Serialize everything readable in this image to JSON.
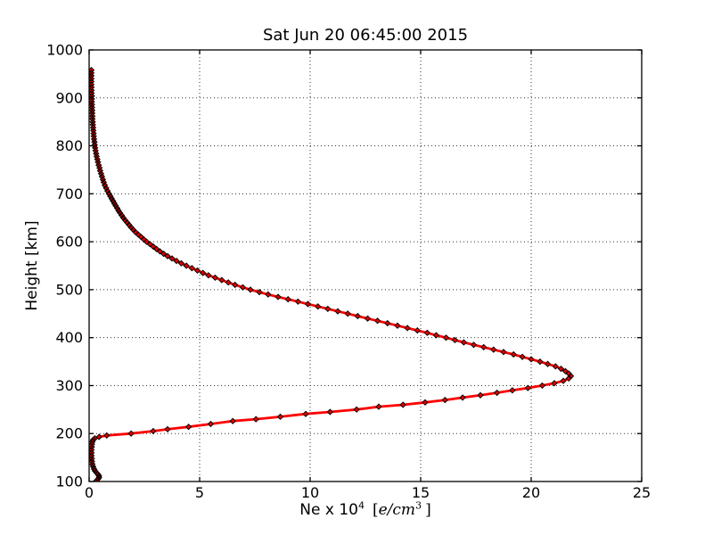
{
  "chart_data": {
    "type": "line",
    "title": "Sat Jun 20 06:45:00 2015",
    "ylabel": "Height [km]",
    "xlabel": {
      "prefix": "Ne x 10",
      "exponent": "4",
      "unit_open": "[",
      "unit_body": "e/cm",
      "unit_exponent": "3",
      "unit_close": "]"
    },
    "xlabel_plain": "Ne x 10^4 [e/cm^3]",
    "xlim": [
      0,
      25
    ],
    "ylim": [
      100,
      1000
    ],
    "xticks": [
      "0",
      "5",
      "10",
      "15",
      "20",
      "25"
    ],
    "yticks": [
      "100",
      "200",
      "300",
      "400",
      "500",
      "600",
      "700",
      "800",
      "900",
      "1000"
    ],
    "grid": {
      "style": "dotted",
      "color": "#333333"
    },
    "axes_color": "#000000",
    "background": "#ffffff",
    "series": [
      {
        "name": "electron-density-profile",
        "line_color": "#ff0000",
        "line_width": 2.8,
        "marker": "diamond",
        "marker_fill": "#dd0000",
        "marker_edge": "#000000",
        "point_format": [
          "height_km",
          "ne_x1e4_e_per_cm3"
        ],
        "peak": {
          "height_km": 320,
          "ne": 21.8
        },
        "points": [
          [
            100,
            0.3
          ],
          [
            103,
            0.36
          ],
          [
            106,
            0.42
          ],
          [
            109,
            0.45
          ],
          [
            112,
            0.44
          ],
          [
            115,
            0.4
          ],
          [
            118,
            0.34
          ],
          [
            122,
            0.27
          ],
          [
            126,
            0.22
          ],
          [
            131,
            0.18
          ],
          [
            136,
            0.15
          ],
          [
            142,
            0.13
          ],
          [
            148,
            0.12
          ],
          [
            154,
            0.11
          ],
          [
            160,
            0.11
          ],
          [
            166,
            0.11
          ],
          [
            172,
            0.12
          ],
          [
            178,
            0.13
          ],
          [
            183,
            0.15
          ],
          [
            187,
            0.18
          ],
          [
            190,
            0.26
          ],
          [
            193,
            0.45
          ],
          [
            196,
            0.8
          ],
          [
            200,
            1.9
          ],
          [
            205,
            2.9
          ],
          [
            209,
            3.55
          ],
          [
            214,
            4.5
          ],
          [
            220,
            5.5
          ],
          [
            226,
            6.5
          ],
          [
            230,
            7.55
          ],
          [
            235,
            8.65
          ],
          [
            241,
            9.8
          ],
          [
            245,
            10.9
          ],
          [
            250,
            12.1
          ],
          [
            256,
            13.1
          ],
          [
            260,
            14.2
          ],
          [
            265,
            15.2
          ],
          [
            270,
            16.1
          ],
          [
            275,
            16.9
          ],
          [
            280,
            17.7
          ],
          [
            285,
            18.45
          ],
          [
            290,
            19.15
          ],
          [
            295,
            19.85
          ],
          [
            300,
            20.5
          ],
          [
            305,
            21.05
          ],
          [
            310,
            21.45
          ],
          [
            315,
            21.7
          ],
          [
            320,
            21.8
          ],
          [
            325,
            21.7
          ],
          [
            330,
            21.55
          ],
          [
            335,
            21.35
          ],
          [
            340,
            21.1
          ],
          [
            345,
            20.75
          ],
          [
            350,
            20.4
          ],
          [
            355,
            20.0
          ],
          [
            360,
            19.6
          ],
          [
            365,
            19.2
          ],
          [
            370,
            18.75
          ],
          [
            375,
            18.3
          ],
          [
            380,
            17.85
          ],
          [
            385,
            17.4
          ],
          [
            390,
            16.95
          ],
          [
            395,
            16.55
          ],
          [
            400,
            16.15
          ],
          [
            405,
            15.7
          ],
          [
            410,
            15.3
          ],
          [
            415,
            14.85
          ],
          [
            420,
            14.4
          ],
          [
            425,
            13.95
          ],
          [
            430,
            13.5
          ],
          [
            435,
            13.05
          ],
          [
            440,
            12.6
          ],
          [
            445,
            12.15
          ],
          [
            450,
            11.7
          ],
          [
            455,
            11.25
          ],
          [
            460,
            10.8
          ],
          [
            465,
            10.35
          ],
          [
            470,
            9.9
          ],
          [
            475,
            9.45
          ],
          [
            480,
            9.0
          ],
          [
            485,
            8.55
          ],
          [
            490,
            8.1
          ],
          [
            495,
            7.7
          ],
          [
            500,
            7.3
          ],
          [
            505,
            6.95
          ],
          [
            510,
            6.6
          ],
          [
            515,
            6.3
          ],
          [
            520,
            6.0
          ],
          [
            525,
            5.7
          ],
          [
            530,
            5.4
          ],
          [
            535,
            5.15
          ],
          [
            540,
            4.9
          ],
          [
            545,
            4.65
          ],
          [
            550,
            4.4
          ],
          [
            555,
            4.17
          ],
          [
            560,
            3.95
          ],
          [
            565,
            3.75
          ],
          [
            570,
            3.55
          ],
          [
            575,
            3.37
          ],
          [
            580,
            3.2
          ],
          [
            585,
            3.05
          ],
          [
            590,
            2.9
          ],
          [
            595,
            2.75
          ],
          [
            600,
            2.6
          ],
          [
            605,
            2.47
          ],
          [
            610,
            2.35
          ],
          [
            615,
            2.22
          ],
          [
            620,
            2.1
          ],
          [
            625,
            2.0
          ],
          [
            630,
            1.9
          ],
          [
            635,
            1.81
          ],
          [
            640,
            1.72
          ],
          [
            645,
            1.63
          ],
          [
            650,
            1.55
          ],
          [
            655,
            1.47
          ],
          [
            660,
            1.4
          ],
          [
            665,
            1.33
          ],
          [
            670,
            1.27
          ],
          [
            675,
            1.2
          ],
          [
            680,
            1.14
          ],
          [
            685,
            1.08
          ],
          [
            690,
            1.02
          ],
          [
            695,
            0.96
          ],
          [
            700,
            0.9
          ],
          [
            706,
            0.83
          ],
          [
            712,
            0.77
          ],
          [
            718,
            0.71
          ],
          [
            724,
            0.66
          ],
          [
            730,
            0.62
          ],
          [
            736,
            0.58
          ],
          [
            742,
            0.54
          ],
          [
            748,
            0.5
          ],
          [
            754,
            0.47
          ],
          [
            760,
            0.43
          ],
          [
            766,
            0.4
          ],
          [
            772,
            0.37
          ],
          [
            778,
            0.34
          ],
          [
            784,
            0.32
          ],
          [
            790,
            0.29
          ],
          [
            796,
            0.27
          ],
          [
            802,
            0.25
          ],
          [
            808,
            0.24
          ],
          [
            814,
            0.22
          ],
          [
            820,
            0.21
          ],
          [
            826,
            0.2
          ],
          [
            832,
            0.19
          ],
          [
            838,
            0.18
          ],
          [
            844,
            0.17
          ],
          [
            850,
            0.16
          ],
          [
            856,
            0.15
          ],
          [
            862,
            0.15
          ],
          [
            868,
            0.14
          ],
          [
            874,
            0.14
          ],
          [
            880,
            0.13
          ],
          [
            886,
            0.13
          ],
          [
            892,
            0.12
          ],
          [
            898,
            0.12
          ],
          [
            904,
            0.12
          ],
          [
            910,
            0.11
          ],
          [
            916,
            0.11
          ],
          [
            922,
            0.11
          ],
          [
            928,
            0.1
          ],
          [
            934,
            0.1
          ],
          [
            940,
            0.1
          ],
          [
            946,
            0.1
          ],
          [
            952,
            0.1
          ],
          [
            958,
            0.1
          ]
        ]
      }
    ]
  }
}
